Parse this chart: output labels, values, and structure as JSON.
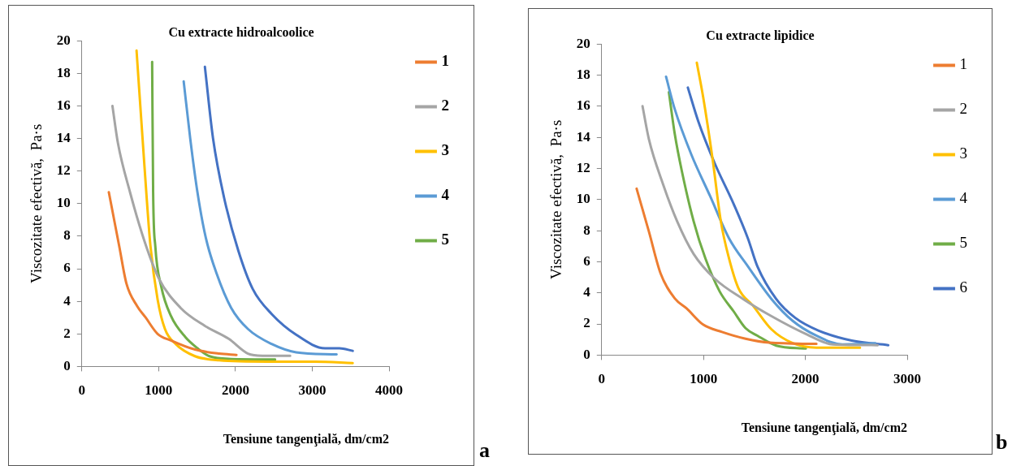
{
  "chart_data": [
    {
      "type": "line",
      "title": "Cu extracte hidroalcoolice",
      "xlabel": "Tensiune tangenţială, dm/cm2",
      "ylabel": "Viscozitate efectivă,  Pa·s",
      "xlim": [
        0,
        4000
      ],
      "xticks": [
        0,
        1000,
        2000,
        3000,
        4000
      ],
      "ylim": [
        0,
        20
      ],
      "yticks": [
        0,
        2,
        4,
        6,
        8,
        10,
        12,
        14,
        16,
        18,
        20
      ],
      "grid": false,
      "legend": "right",
      "marker": "none",
      "annotations": [
        "a"
      ],
      "series": [
        {
          "name": "1",
          "color": "#ed7d31",
          "x": [
            351,
            486,
            580,
            721,
            831,
            987,
            1160,
            1473,
            1787,
            2013
          ],
          "values": [
            10.7,
            7.4,
            5.1,
            3.7,
            3.0,
            2.0,
            1.6,
            1.04,
            0.79,
            0.71
          ]
        },
        {
          "name": "2",
          "color": "#a5a5a5",
          "x": [
            398,
            470,
            627,
            815,
            1003,
            1285,
            1599,
            1912,
            2163,
            2351,
            2712
          ],
          "values": [
            16.0,
            13.7,
            10.7,
            7.7,
            5.4,
            3.6,
            2.5,
            1.7,
            0.79,
            0.66,
            0.66
          ]
        },
        {
          "name": "3",
          "color": "#ffc000",
          "x": [
            712,
            815,
            893,
            987,
            1082,
            1223,
            1473,
            1787,
            2414,
            3041,
            3527
          ],
          "values": [
            19.4,
            12.3,
            7.4,
            4.1,
            2.3,
            1.37,
            0.63,
            0.38,
            0.3,
            0.3,
            0.21
          ]
        },
        {
          "name": "4",
          "color": "#5b9bd5",
          "x": [
            1326,
            1411,
            1505,
            1614,
            1755,
            1944,
            2163,
            2476,
            2790,
            3317
          ],
          "values": [
            17.5,
            14.0,
            10.7,
            7.9,
            5.7,
            3.6,
            2.3,
            1.37,
            0.87,
            0.74
          ]
        },
        {
          "name": "5",
          "color": "#70ad47",
          "x": [
            915,
            928,
            956,
            1034,
            1160,
            1348,
            1505,
            1661,
            1944,
            2517
          ],
          "values": [
            18.7,
            10.7,
            7.4,
            4.9,
            3.1,
            1.8,
            1.12,
            0.63,
            0.46,
            0.43
          ]
        },
        {
          "color": "#4472c4",
          "x": [
            1602,
            1708,
            1850,
            2038,
            2226,
            2476,
            2790,
            3166,
            3354,
            3527
          ],
          "values": [
            18.4,
            14.0,
            10.4,
            7.1,
            4.75,
            3.2,
            1.95,
            1.12,
            1.12,
            0.96
          ]
        }
      ]
    },
    {
      "type": "line",
      "title": "Cu extracte lipidice",
      "xlabel": "Tensiune tangenţială, dm/cm2",
      "ylabel": "Viscozitate efectivă,  Pa·s",
      "xlim": [
        0,
        3000
      ],
      "xticks": [
        0,
        1000,
        2000,
        3000
      ],
      "ylim": [
        0,
        20
      ],
      "yticks": [
        0,
        2,
        4,
        6,
        8,
        10,
        12,
        14,
        16,
        18,
        20
      ],
      "grid": false,
      "legend": "right",
      "marker": "none",
      "annotations": [
        "b"
      ],
      "series": [
        {
          "name": "1",
          "color": "#ed7d31",
          "x": [
            343,
            463,
            579,
            718,
            834,
            996,
            1181,
            1413,
            1645,
            2108
          ],
          "values": [
            10.7,
            7.96,
            5.24,
            3.64,
            3.0,
            1.96,
            1.49,
            1.05,
            0.8,
            0.72
          ]
        },
        {
          "name": "2",
          "color": "#a5a5a5",
          "x": [
            401,
            463,
            602,
            741,
            903,
            1112,
            1390,
            1668,
            1992,
            2270,
            2710
          ],
          "values": [
            16.0,
            13.9,
            11.0,
            8.6,
            6.5,
            4.9,
            3.6,
            2.5,
            1.4,
            0.69,
            0.64
          ]
        },
        {
          "name": "3",
          "color": "#ffc000",
          "x": [
            934,
            996,
            1089,
            1170,
            1251,
            1343,
            1483,
            1668,
            1876,
            2108,
            2536
          ],
          "values": [
            18.8,
            16.6,
            12.6,
            8.6,
            6.2,
            4.3,
            3.2,
            1.65,
            0.77,
            0.48,
            0.48
          ]
        },
        {
          "name": "4",
          "color": "#5b9bd5",
          "x": [
            632,
            718,
            880,
            1066,
            1251,
            1436,
            1668,
            1876,
            2108,
            2363,
            2687
          ],
          "values": [
            17.9,
            15.8,
            12.9,
            10.2,
            7.5,
            5.7,
            3.6,
            2.2,
            1.25,
            0.69,
            0.77
          ]
        },
        {
          "name": "5",
          "color": "#70ad47",
          "x": [
            660,
            718,
            788,
            903,
            1019,
            1158,
            1297,
            1413,
            1529,
            1714,
            2004
          ],
          "values": [
            16.9,
            14.2,
            11.8,
            8.6,
            6.2,
            4.1,
            2.8,
            1.73,
            1.25,
            0.61,
            0.42
          ]
        },
        {
          "name": "6",
          "color": "#4472c4",
          "x": [
            846,
            950,
            1112,
            1297,
            1436,
            1529,
            1714,
            1899,
            2131,
            2455,
            2814
          ],
          "values": [
            17.2,
            15.0,
            12.3,
            9.7,
            7.5,
            5.7,
            3.6,
            2.4,
            1.57,
            0.93,
            0.64
          ]
        }
      ]
    }
  ]
}
